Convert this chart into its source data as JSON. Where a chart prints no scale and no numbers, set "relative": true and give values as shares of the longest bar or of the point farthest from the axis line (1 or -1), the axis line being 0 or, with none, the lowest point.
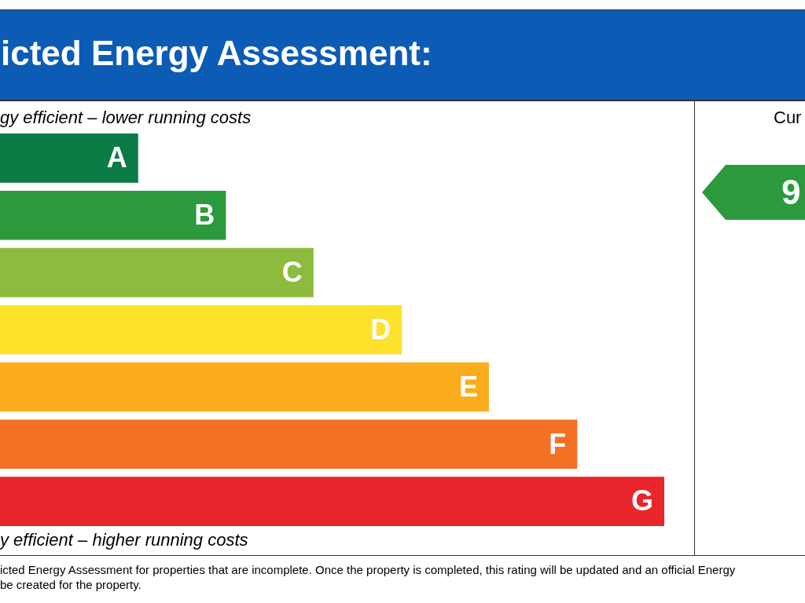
{
  "chart_data": {
    "type": "bar",
    "orientation": "horizontal",
    "relative": true,
    "title": "icted Energy Assessment:",
    "categories": [
      "A",
      "B",
      "C",
      "D",
      "E",
      "F",
      "G"
    ],
    "values": [
      0.208,
      0.34,
      0.472,
      0.605,
      0.736,
      0.869,
      1
    ],
    "colors": [
      "#0b7b45",
      "#2a9a3c",
      "#8dbb3e",
      "#fde12a",
      "#fbac1c",
      "#f37124",
      "#e8262b"
    ],
    "annotations": [
      "gy efficient – lower running costs",
      "y efficient – higher running costs",
      "Cur",
      "9",
      "icted Energy Assessment for properties that are incomplete. Once the property is completed, this rating will be updated and an official Energy",
      "be created for the property."
    ],
    "legend": false
  }
}
